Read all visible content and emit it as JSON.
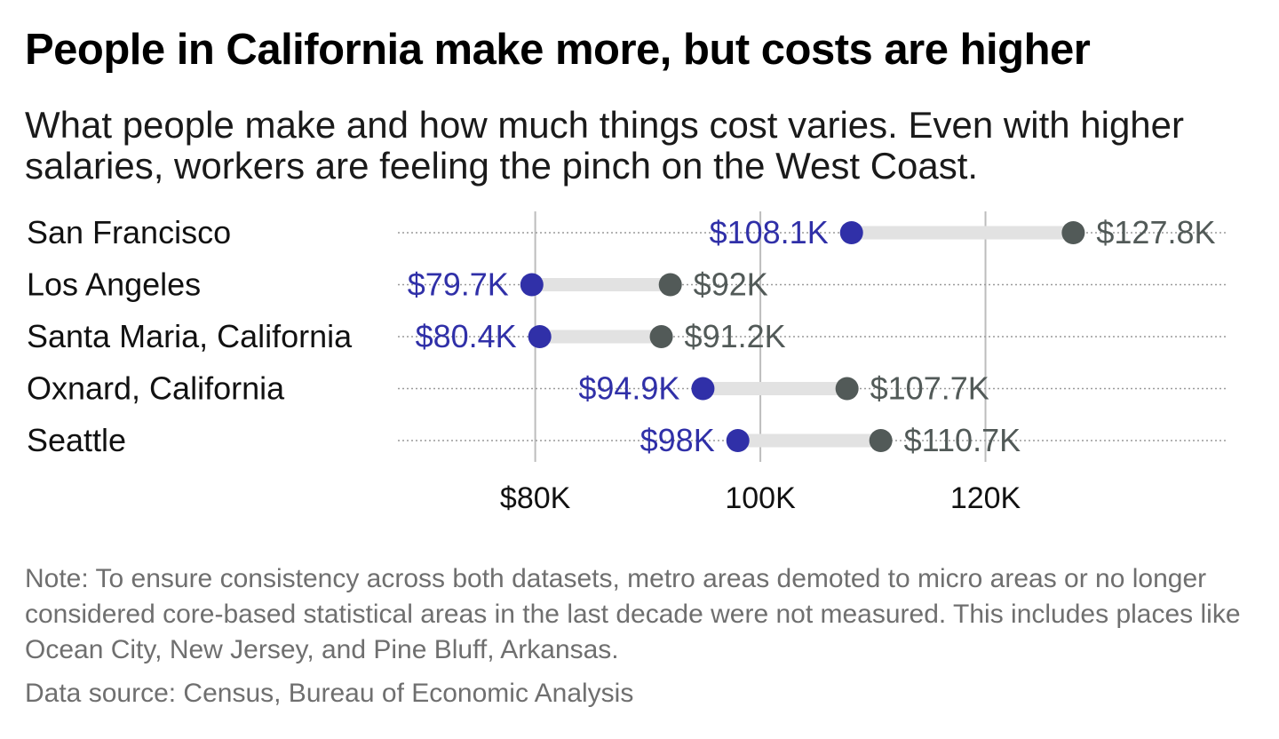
{
  "title": "People in California make more, but costs are higher",
  "subtitle": "What people make and how much things cost varies. Even with higher salaries, workers are feeling the pinch on the West Coast.",
  "note": "Note: To ensure consistency across both datasets, metro areas demoted to micro areas or no longer considered core-based statistical areas in the last decade were not measured. This includes places like Ocean City, New Jersey, and Pine Bluff, Arkansas.",
  "source": "Data source: Census, Bureau of Economic Analysis",
  "colors": {
    "low": "#3030a8",
    "high": "#525a58",
    "connector": "#e2e2e2",
    "grid": "#bdbdbd",
    "dots": "#9a9a9a"
  },
  "chart_data": {
    "type": "dumbbell",
    "x_ticks": [
      {
        "value": 80,
        "label": "$80K"
      },
      {
        "value": 100,
        "label": "100K"
      },
      {
        "value": 120,
        "label": "120K"
      }
    ],
    "xlim": [
      67.8,
      141.5
    ],
    "grid": true,
    "rows": [
      {
        "label": "San Francisco",
        "low": 108.1,
        "low_label": "$108.1K",
        "high": 127.8,
        "high_label": "$127.8K"
      },
      {
        "label": "Los Angeles",
        "low": 79.7,
        "low_label": "$79.7K",
        "high": 92.0,
        "high_label": "$92K"
      },
      {
        "label": "Santa Maria, California",
        "low": 80.4,
        "low_label": "$80.4K",
        "high": 91.2,
        "high_label": "$91.2K"
      },
      {
        "label": "Oxnard, California",
        "low": 94.9,
        "low_label": "$94.9K",
        "high": 107.7,
        "high_label": "$107.7K"
      },
      {
        "label": "Seattle",
        "low": 98.0,
        "low_label": "$98K",
        "high": 110.7,
        "high_label": "$110.7K"
      }
    ]
  }
}
